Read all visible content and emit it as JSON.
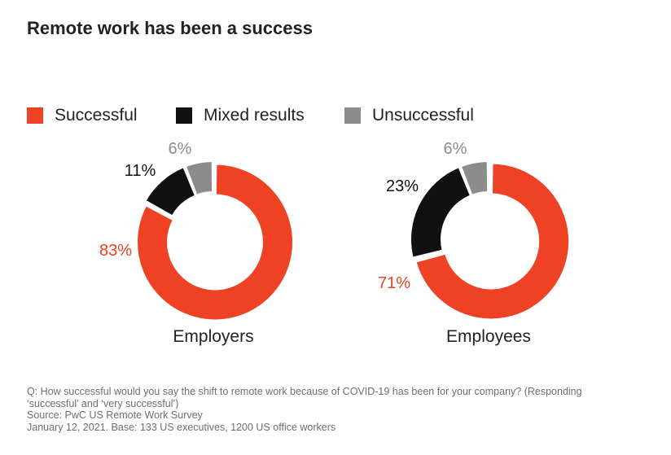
{
  "title": "Remote work has been a success",
  "colors": {
    "successful": "#ef4123",
    "mixed": "#111111",
    "unsuccessful": "#8c8c8c",
    "text": "#222222",
    "footnote": "#6e6e6e"
  },
  "chart_data": [
    {
      "type": "pie",
      "donut": true,
      "label": "Employers",
      "categories": [
        "Successful",
        "Mixed results",
        "Unsuccessful"
      ],
      "values": [
        83,
        11,
        6
      ],
      "value_labels": [
        "83%",
        "11%",
        "6%"
      ]
    },
    {
      "type": "pie",
      "donut": true,
      "label": "Employees",
      "categories": [
        "Successful",
        "Mixed results",
        "Unsuccessful"
      ],
      "values": [
        71,
        23,
        6
      ],
      "value_labels": [
        "71%",
        "23%",
        "6%"
      ]
    }
  ],
  "legend": [
    {
      "label": "Successful",
      "color": "#ef4123"
    },
    {
      "label": "Mixed results",
      "color": "#111111"
    },
    {
      "label": "Unsuccessful",
      "color": "#8c8c8c"
    }
  ],
  "footnote": {
    "question_line1": "Q: How successful would you say the shift to remote work because of COVID-19 has been for your company? (Responding",
    "question_line2": "‘successful’ and ‘very successful’)",
    "source": "Source: PwC US Remote Work Survey",
    "date_base": "January 12, 2021. Base: 133 US executives, 1200 US office workers"
  }
}
